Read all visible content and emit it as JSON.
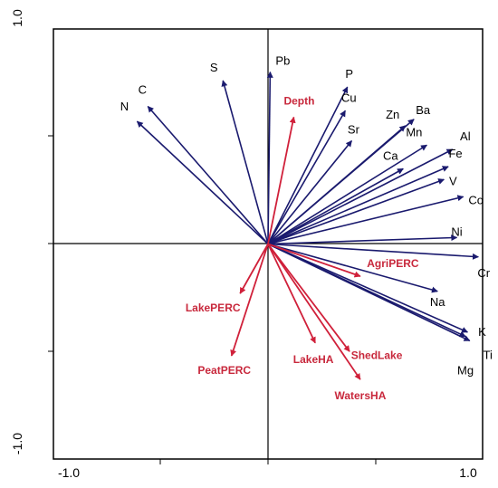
{
  "chart_data": {
    "type": "scatter",
    "subtype": "biplot-arrows",
    "title": "",
    "xlabel": "",
    "ylabel": "",
    "xlim": [
      -1.0,
      1.0
    ],
    "ylim": [
      -1.0,
      1.0
    ],
    "x_tick_labels": [
      "-1.0",
      "1.0"
    ],
    "y_tick_labels": [
      "1.0",
      "-1.0"
    ],
    "grid": false,
    "colors": {
      "species_arrows": "#1a1a6e",
      "environmental_arrows": "#d0203a",
      "environmental_labels": "#c8283c",
      "axes": "#000000"
    },
    "series": [
      {
        "group": "elements",
        "vectors": [
          {
            "label": "N",
            "x": -0.61,
            "y": 0.57
          },
          {
            "label": "C",
            "x": -0.56,
            "y": 0.64
          },
          {
            "label": "S",
            "x": -0.21,
            "y": 0.76
          },
          {
            "label": "Pb",
            "x": 0.01,
            "y": 0.8
          },
          {
            "label": "P",
            "x": 0.37,
            "y": 0.73
          },
          {
            "label": "Cu",
            "x": 0.36,
            "y": 0.62
          },
          {
            "label": "Sr",
            "x": 0.39,
            "y": 0.48
          },
          {
            "label": "Zn",
            "x": 0.64,
            "y": 0.55
          },
          {
            "label": "Ba",
            "x": 0.68,
            "y": 0.58
          },
          {
            "label": "Mn",
            "x": 0.74,
            "y": 0.46
          },
          {
            "label": "Ca",
            "x": 0.63,
            "y": 0.35
          },
          {
            "label": "Al",
            "x": 0.86,
            "y": 0.44
          },
          {
            "label": "Fe",
            "x": 0.84,
            "y": 0.36
          },
          {
            "label": "V",
            "x": 0.82,
            "y": 0.3
          },
          {
            "label": "Co",
            "x": 0.91,
            "y": 0.22
          },
          {
            "label": "Ni",
            "x": 0.88,
            "y": 0.03
          },
          {
            "label": "Cr",
            "x": 0.98,
            "y": -0.06
          },
          {
            "label": "Na",
            "x": 0.79,
            "y": -0.22
          },
          {
            "label": "K",
            "x": 0.93,
            "y": -0.41
          },
          {
            "label": "Ti",
            "x": 0.94,
            "y": -0.45
          },
          {
            "label": "Mg",
            "x": 0.92,
            "y": -0.43
          }
        ]
      },
      {
        "group": "explanatory",
        "vectors": [
          {
            "label": "Depth",
            "x": 0.12,
            "y": 0.59
          },
          {
            "label": "AgriPERC",
            "x": 0.43,
            "y": -0.15
          },
          {
            "label": "LakePERC",
            "x": -0.13,
            "y": -0.23
          },
          {
            "label": "PeatPERC",
            "x": -0.17,
            "y": -0.52
          },
          {
            "label": "LakeHA",
            "x": 0.22,
            "y": -0.46
          },
          {
            "label": "ShedLake",
            "x": 0.38,
            "y": -0.5
          },
          {
            "label": "WatersHA",
            "x": 0.43,
            "y": -0.63
          }
        ]
      }
    ]
  }
}
